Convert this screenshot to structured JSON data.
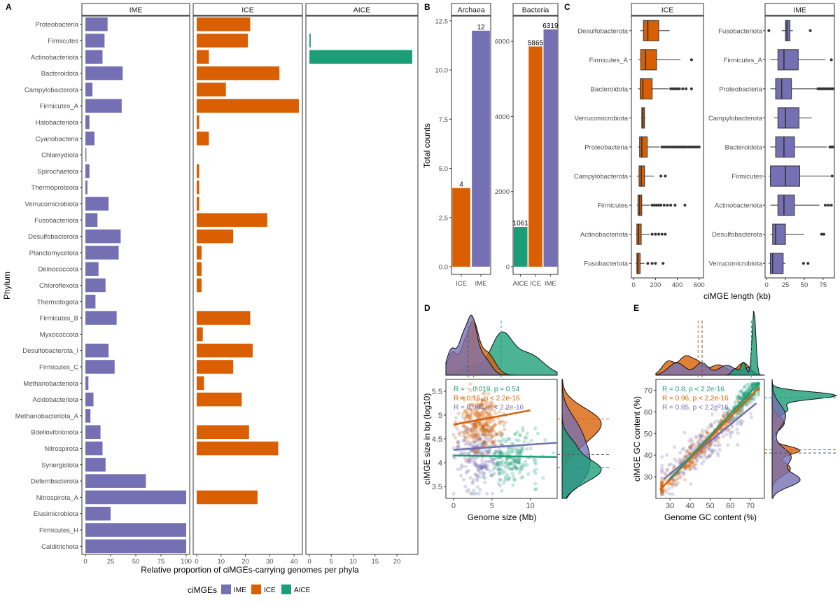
{
  "colors": {
    "IME": "#7570B3",
    "ICE": "#D95F02",
    "AICE": "#1B9E77",
    "box_fill_ICE": "#D95F02",
    "box_fill_IME": "#7570B3"
  },
  "panel_letters": [
    "A",
    "B",
    "C",
    "D",
    "E"
  ],
  "chart_data": [
    {
      "id": "A",
      "type": "bar",
      "orientation": "horizontal",
      "ylabel": "Phylum",
      "xlabel": "Relative proportion of ciMGEs-carrying genomes per phyla",
      "categories": [
        "Proteobacteria",
        "Firmicutes",
        "Actinobacteriota",
        "Bacteroidota",
        "Campylobacterota",
        "Firmicutes_A",
        "Halobacteriota",
        "Cyanobacteria",
        "Chlamydiota",
        "Spirochaetota",
        "Thermoproteota",
        "Verrucomicrobiota",
        "Fusobacteriota",
        "Desulfobacterota",
        "Planctomycetota",
        "Deinococcota",
        "Chloroflexota",
        "Thermotogota",
        "Firmicutes_B",
        "Myxococcota",
        "Desulfobacterota_I",
        "Firmicutes_C",
        "Methanobacteriota",
        "Acidobacteriota",
        "Methanobacteriota_A",
        "Bdellovibrionota",
        "Nitrospirota",
        "Synergistota",
        "Deferribacterota",
        "Nitrospirota_A",
        "Elusimicrobiota",
        "Firmicutes_H",
        "Calditrichota"
      ],
      "facets": [
        {
          "name": "IME",
          "xlim": [
            0,
            100
          ],
          "ticks": [
            "0",
            "25",
            "50",
            "75",
            "100"
          ],
          "values": [
            22,
            19,
            17,
            37,
            7,
            36,
            4,
            9,
            1,
            4,
            2,
            23,
            12,
            35,
            33,
            13,
            20,
            10,
            31,
            0,
            23,
            29,
            3,
            8,
            5,
            15,
            17,
            20,
            60,
            100,
            25,
            100,
            100
          ]
        },
        {
          "name": "ICE",
          "xlim": [
            0,
            42
          ],
          "ticks": [
            "0",
            "10",
            "20",
            "30",
            "40"
          ],
          "values": [
            22,
            21,
            5,
            34,
            12,
            42,
            1,
            5,
            0,
            1,
            1,
            1,
            29,
            15,
            2,
            2,
            2,
            0,
            22,
            2.5,
            23,
            15,
            3,
            18.5,
            0,
            21.5,
            33.5,
            0,
            0,
            25,
            0,
            0,
            0
          ]
        },
        {
          "name": "AICE",
          "xlim": [
            0,
            24
          ],
          "ticks": [
            "0",
            "5",
            "10",
            "15",
            "20"
          ],
          "values": [
            0,
            0.3,
            23.5,
            0,
            0,
            0,
            0,
            0,
            0,
            0,
            0,
            0,
            0,
            0,
            0,
            0,
            0,
            0,
            0,
            0,
            0,
            0,
            0,
            0,
            0,
            0,
            0,
            0,
            0,
            0,
            0,
            0,
            0
          ]
        }
      ],
      "legend": {
        "title": "ciMGEs",
        "entries": [
          "IME",
          "ICE",
          "AICE"
        ],
        "position": "bottom"
      }
    },
    {
      "id": "B",
      "type": "bar",
      "ylabel": "Total counts",
      "facets": [
        {
          "name": "Archaea",
          "categories": [
            "ICE",
            "IME"
          ],
          "values": [
            4,
            12
          ],
          "labels": [
            "4",
            "12"
          ],
          "ylim": [
            0,
            12.6
          ],
          "yticks": [
            "0.0",
            "2.5",
            "5.0",
            "7.5",
            "10.0",
            "12.5"
          ]
        },
        {
          "name": "Bacteria",
          "categories": [
            "AICE",
            "ICE",
            "IME"
          ],
          "values": [
            1061,
            5865,
            6319
          ],
          "labels": [
            "1061",
            "5865",
            "6319"
          ],
          "ylim": [
            0,
            6600
          ],
          "yticks": [
            "0",
            "2000",
            "4000",
            "6000"
          ]
        }
      ]
    },
    {
      "id": "C",
      "type": "box",
      "xlabel": "ciMGE length (kb)",
      "facets": [
        {
          "name": "ICE",
          "xlim": [
            -20,
            640
          ],
          "ticks": [
            "0",
            "200",
            "400",
            "600"
          ],
          "categories": [
            "Desulfobacterota",
            "Firmicutes_A",
            "Bacteroidota",
            "Verrucomicrobiota",
            "Proteobacteria",
            "Campylobacterota",
            "Firmicutes",
            "Actinobacteriota",
            "Fusobacteriota"
          ],
          "boxes": [
            {
              "min": 60,
              "q1": 90,
              "med": 130,
              "q3": 230,
              "max": 330,
              "outliers": []
            },
            {
              "min": 40,
              "q1": 65,
              "med": 110,
              "q3": 210,
              "max": 430,
              "outliers": [
                530
              ]
            },
            {
              "min": 40,
              "q1": 60,
              "med": 85,
              "q3": 170,
              "max": 320,
              "outliers": [
                340,
                360,
                380,
                400,
                420,
                450,
                480,
                530
              ]
            },
            {
              "min": 70,
              "q1": 75,
              "med": 85,
              "q3": 100,
              "max": 110,
              "outliers": []
            },
            {
              "min": 40,
              "q1": 55,
              "med": 75,
              "q3": 125,
              "max": 240,
              "outliers": [
                260,
                280,
                300,
                320,
                340,
                360,
                380,
                400,
                420,
                440,
                460,
                480,
                500,
                520,
                540,
                560,
                580,
                600
              ]
            },
            {
              "min": 30,
              "q1": 50,
              "med": 70,
              "q3": 100,
              "max": 190,
              "outliers": [
                250,
                290
              ]
            },
            {
              "min": 30,
              "q1": 40,
              "med": 55,
              "q3": 75,
              "max": 150,
              "outliers": [
                170,
                190,
                210,
                230,
                250,
                280,
                310,
                340,
                380,
                470
              ]
            },
            {
              "min": 20,
              "q1": 30,
              "med": 45,
              "q3": 70,
              "max": 150,
              "outliers": [
                170,
                200,
                230,
                260,
                290
              ]
            },
            {
              "min": 20,
              "q1": 30,
              "med": 40,
              "q3": 60,
              "max": 100,
              "outliers": [
                130,
                170,
                200,
                270
              ]
            }
          ]
        },
        {
          "name": "IME",
          "xlim": [
            -2,
            90
          ],
          "ticks": [
            "0",
            "25",
            "50",
            "75"
          ],
          "categories": [
            "Fusobacteriota",
            "Firmicutes_A",
            "Proteobacteria",
            "Campylobacterota",
            "Bacteroidota",
            "Firmicutes",
            "Actinobacteriota",
            "Desulfobacterota",
            "Verrucomicrobiota"
          ],
          "boxes": [
            {
              "min": 20,
              "q1": 25,
              "med": 27,
              "q3": 31,
              "max": 35,
              "outliers": [
                3,
                58
              ]
            },
            {
              "min": 5,
              "q1": 15,
              "med": 23,
              "q3": 42,
              "max": 78,
              "outliers": [
                86
              ]
            },
            {
              "min": 5,
              "q1": 12,
              "med": 20,
              "q3": 33,
              "max": 66,
              "outliers": [
                68,
                70,
                72,
                74,
                76,
                78,
                80,
                82,
                84,
                86,
                88
              ]
            },
            {
              "min": 10,
              "q1": 15,
              "med": 25,
              "q3": 43,
              "max": 60,
              "outliers": []
            },
            {
              "min": 5,
              "q1": 12,
              "med": 23,
              "q3": 37,
              "max": 80,
              "outliers": [
                84,
                86,
                88
              ]
            },
            {
              "min": 3,
              "q1": 5,
              "med": 25,
              "q3": 44,
              "max": 85,
              "outliers": [
                87
              ]
            },
            {
              "min": 5,
              "q1": 15,
              "med": 23,
              "q3": 37,
              "max": 70,
              "outliers": [
                78,
                82,
                86
              ]
            },
            {
              "min": 5,
              "q1": 8,
              "med": 12,
              "q3": 25,
              "max": 50,
              "outliers": [
                73,
                76
              ]
            },
            {
              "min": 3,
              "q1": 5,
              "med": 8,
              "q3": 22,
              "max": 25,
              "outliers": [
                49,
                55
              ]
            }
          ]
        }
      ]
    },
    {
      "id": "D",
      "type": "scatter",
      "xlabel": "Genome size (Mb)",
      "ylabel": "ciMGE size in bp (log10)",
      "xlim": [
        -1,
        13.5
      ],
      "ylim": [
        3.25,
        5.75
      ],
      "xticks": [
        "0",
        "5",
        "10"
      ],
      "yticks": [
        "3.5",
        "4",
        "4.5",
        "5",
        "5.5"
      ],
      "annotations": [
        {
          "R": "R = − 0.019, p = 0.54",
          "series": "AICE"
        },
        {
          "R": "R = 0.15, p < 2.2e-16",
          "series": "ICE"
        },
        {
          "R": "R = 0.094, p < 2.2e-16",
          "series": "IME"
        }
      ],
      "series": [
        {
          "name": "ICE",
          "x_mean": 3.4,
          "x_sd": 1.3,
          "y_mean": 4.85,
          "y_sd": 0.3,
          "trend": [
            [
              0,
              4.8
            ],
            [
              10,
              5.1
            ]
          ],
          "n": 300
        },
        {
          "name": "IME",
          "x_mean": 3.3,
          "x_sd": 1.6,
          "y_mean": 4.15,
          "y_sd": 0.35,
          "trend": [
            [
              0,
              4.27
            ],
            [
              13.5,
              4.42
            ]
          ],
          "n": 260
        },
        {
          "name": "AICE",
          "x_mean": 7.5,
          "x_sd": 1.8,
          "y_mean": 4.1,
          "y_sd": 0.28,
          "trend": [
            [
              0,
              4.15
            ],
            [
              13.5,
              4.12
            ]
          ],
          "n": 220
        }
      ],
      "top_density_peaks": {
        "IME": 2.5,
        "ICE": 2.5,
        "AICE": 6.2
      },
      "right_density_peaks": {
        "ICE": 4.85,
        "IME": 4.15,
        "AICE": 3.9
      }
    },
    {
      "id": "E",
      "type": "scatter",
      "xlabel": "Genome GC content (%)",
      "ylabel": "ciMGE GC content (%)",
      "xlim": [
        23,
        77
      ],
      "ylim": [
        20,
        75
      ],
      "xticks": [
        "30",
        "40",
        "50",
        "60",
        "70"
      ],
      "yticks": [
        "30",
        "40",
        "50",
        "60",
        "70"
      ],
      "annotations": [
        {
          "R": "R = 0.8, p < 2.2e-16",
          "series": "AICE"
        },
        {
          "R": "R = 0.96, p < 2.2e-16",
          "series": "ICE"
        },
        {
          "R": "R = 0.85, p < 2.2e-16",
          "series": "IME"
        }
      ],
      "series": [
        {
          "name": "IME",
          "x_mean": 45,
          "x_sd": 12,
          "trend": [
            [
              27,
              29
            ],
            [
              73,
              64
            ]
          ],
          "n": 260
        },
        {
          "name": "ICE",
          "x_mean": 45,
          "x_sd": 12,
          "trend": [
            [
              25,
              24
            ],
            [
              74,
              71
            ]
          ],
          "n": 260
        },
        {
          "name": "AICE",
          "x_mean": 68,
          "x_sd": 5,
          "trend": [
            [
              30,
              29
            ],
            [
              74,
              73
            ]
          ],
          "n": 200
        }
      ],
      "top_density_peaks": {
        "ICE": 44,
        "IME": 46,
        "AICE": 71
      },
      "right_density_peaks": {
        "AICE": 67,
        "ICE": 43,
        "IME": 41
      }
    }
  ]
}
